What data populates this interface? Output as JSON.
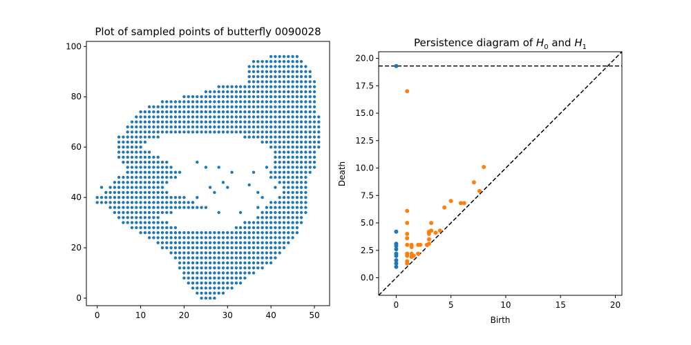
{
  "colors": {
    "h0": "#1f77b4",
    "h1": "#ff7f0e",
    "axis": "#000000",
    "background": "#ffffff"
  },
  "chart_data": [
    {
      "type": "scatter",
      "title": "Plot of sampled points of butterfly 0090028",
      "xlabel": "",
      "ylabel": "",
      "xlim": [
        -2.5,
        53.5
      ],
      "ylim": [
        -3,
        102
      ],
      "xticks": [
        "0",
        "10",
        "20",
        "30",
        "40",
        "50"
      ],
      "yticks": [
        "0",
        "20",
        "40",
        "60",
        "80",
        "100"
      ],
      "grid": false,
      "color": "#1f77b4",
      "rows": [
        {
          "y": 96,
          "x_ranges": [
            [
              40,
              46
            ]
          ]
        },
        {
          "y": 94,
          "x_ranges": [
            [
              36,
              47
            ]
          ]
        },
        {
          "y": 92,
          "x_ranges": [
            [
              35,
              48
            ]
          ]
        },
        {
          "y": 90,
          "x_ranges": [
            [
              35,
              49
            ]
          ]
        },
        {
          "y": 88,
          "x_ranges": [
            [
              35,
              49
            ]
          ]
        },
        {
          "y": 86,
          "x_ranges": [
            [
              35,
              50
            ]
          ]
        },
        {
          "y": 84,
          "x_ranges": [
            [
              28,
              50
            ]
          ]
        },
        {
          "y": 82,
          "x_ranges": [
            [
              25,
              50
            ]
          ]
        },
        {
          "y": 80,
          "x_ranges": [
            [
              20,
              50
            ]
          ]
        },
        {
          "y": 78,
          "x_ranges": [
            [
              15,
              50
            ]
          ]
        },
        {
          "y": 76,
          "x_ranges": [
            [
              12,
              50
            ]
          ]
        },
        {
          "y": 74,
          "x_ranges": [
            [
              10,
              50
            ]
          ]
        },
        {
          "y": 72,
          "x_ranges": [
            [
              9,
              51
            ]
          ]
        },
        {
          "y": 70,
          "x_ranges": [
            [
              8,
              51
            ]
          ]
        },
        {
          "y": 68,
          "x_ranges": [
            [
              7,
              51
            ]
          ]
        },
        {
          "y": 66,
          "x_ranges": [
            [
              7,
              51
            ]
          ]
        },
        {
          "y": 64,
          "x_ranges": [
            [
              5,
              14
            ],
            [
              34,
              51
            ]
          ]
        },
        {
          "y": 62,
          "x_ranges": [
            [
              5,
              11
            ],
            [
              38,
              51
            ]
          ]
        },
        {
          "y": 60,
          "x_ranges": [
            [
              5,
              10
            ],
            [
              40,
              51
            ]
          ]
        },
        {
          "y": 58,
          "x_ranges": [
            [
              5,
              12
            ],
            [
              41,
              50
            ]
          ]
        },
        {
          "y": 56,
          "x_ranges": [
            [
              5,
              14
            ],
            [
              41,
              50
            ]
          ]
        },
        {
          "y": 54,
          "x_ranges": [
            [
              6,
              16
            ],
            [
              41,
              50
            ]
          ]
        },
        {
          "y": 52,
          "x_ranges": [
            [
              7,
              17
            ],
            [
              41,
              50
            ]
          ]
        },
        {
          "y": 50,
          "x_ranges": [
            [
              7,
              19
            ],
            [
              40,
              49
            ]
          ]
        },
        {
          "y": 48,
          "x_ranges": [
            [
              5,
              18
            ],
            [
              40,
              48
            ]
          ]
        },
        {
          "y": 46,
          "x_ranges": [
            [
              4,
              16
            ],
            [
              42,
              48
            ]
          ]
        },
        {
          "y": 44,
          "x_ranges": [
            [
              3,
              15
            ],
            [
              43,
              48
            ]
          ]
        },
        {
          "y": 42,
          "x_ranges": [
            [
              2,
              16
            ],
            [
              43,
              48
            ]
          ]
        },
        {
          "y": 40,
          "x_ranges": [
            [
              1,
              20
            ],
            [
              42,
              48
            ]
          ]
        },
        {
          "y": 38,
          "x_ranges": [
            [
              1,
              22
            ],
            [
              40,
              48
            ]
          ]
        },
        {
          "y": 36,
          "x_ranges": [
            [
              3,
              24
            ],
            [
              39,
              48
            ]
          ]
        },
        {
          "y": 34,
          "x_ranges": [
            [
              4,
              17
            ],
            [
              38,
              48
            ]
          ]
        },
        {
          "y": 32,
          "x_ranges": [
            [
              5,
              14
            ],
            [
              37,
              47
            ]
          ]
        },
        {
          "y": 30,
          "x_ranges": [
            [
              6,
              16
            ],
            [
              34,
              47
            ]
          ]
        },
        {
          "y": 28,
          "x_ranges": [
            [
              8,
              18
            ],
            [
              32,
              46
            ]
          ]
        },
        {
          "y": 26,
          "x_ranges": [
            [
              10,
              46
            ]
          ]
        },
        {
          "y": 24,
          "x_ranges": [
            [
              12,
              45
            ]
          ]
        },
        {
          "y": 22,
          "x_ranges": [
            [
              14,
              44
            ]
          ]
        },
        {
          "y": 20,
          "x_ranges": [
            [
              15,
              43
            ]
          ]
        },
        {
          "y": 18,
          "x_ranges": [
            [
              17,
              42
            ]
          ]
        },
        {
          "y": 16,
          "x_ranges": [
            [
              18,
              41
            ]
          ]
        },
        {
          "y": 14,
          "x_ranges": [
            [
              19,
              40
            ]
          ]
        },
        {
          "y": 12,
          "x_ranges": [
            [
              19,
              38
            ]
          ]
        },
        {
          "y": 10,
          "x_ranges": [
            [
              20,
              36
            ]
          ]
        },
        {
          "y": 8,
          "x_ranges": [
            [
              20,
              34
            ]
          ]
        },
        {
          "y": 6,
          "x_ranges": [
            [
              21,
              33
            ]
          ]
        },
        {
          "y": 4,
          "x_ranges": [
            [
              22,
              31
            ]
          ]
        },
        {
          "y": 2,
          "x_ranges": [
            [
              23,
              29
            ]
          ]
        },
        {
          "y": 0,
          "x_ranges": [
            [
              24,
              27
            ]
          ]
        }
      ],
      "extra_points": [
        [
          0,
          40
        ],
        [
          0,
          38
        ],
        [
          1,
          44
        ],
        [
          23,
          54
        ],
        [
          25,
          52
        ],
        [
          28,
          52
        ],
        [
          31,
          50
        ],
        [
          29,
          46
        ],
        [
          30,
          44
        ],
        [
          27,
          42
        ],
        [
          26,
          44
        ],
        [
          23,
          40
        ],
        [
          22,
          38
        ],
        [
          25,
          36
        ],
        [
          28,
          34
        ],
        [
          33,
          34
        ],
        [
          37,
          42
        ],
        [
          38,
          40
        ],
        [
          36,
          50
        ],
        [
          39,
          52
        ],
        [
          37,
          36
        ],
        [
          35,
          45
        ],
        [
          41,
          44
        ]
      ]
    },
    {
      "type": "scatter",
      "title": "Persistence diagram of H_0 and H_1",
      "title_parts": {
        "prefix": "Persistence diagram of ",
        "a": "H",
        "a_sub": "0",
        "middle": " and ",
        "b": "H",
        "b_sub": "1"
      },
      "xlabel": "Birth",
      "ylabel": "Death",
      "xlim": [
        -1.6,
        20.6
      ],
      "ylim": [
        -1.6,
        20.6
      ],
      "xticks": [
        "0",
        "5",
        "10",
        "15",
        "20"
      ],
      "yticks": [
        "0.0",
        "2.5",
        "5.0",
        "7.5",
        "10.0",
        "12.5",
        "15.0",
        "17.5",
        "20.0"
      ],
      "grid": false,
      "infinity_line": 19.3,
      "diagonal": true,
      "series": [
        {
          "name": "H_0",
          "color": "#1f77b4",
          "points": [
            [
              0,
              19.3
            ],
            [
              0,
              4.2
            ],
            [
              0,
              3.1
            ],
            [
              0,
              2.9
            ],
            [
              0,
              2.6
            ],
            [
              0,
              2.2
            ],
            [
              0,
              2.0
            ],
            [
              0,
              1.6
            ],
            [
              0,
              1.3
            ],
            [
              0,
              1.0
            ]
          ]
        },
        {
          "name": "H_1",
          "color": "#ff7f0e",
          "points": [
            [
              1.0,
              17.0
            ],
            [
              1.0,
              6.1
            ],
            [
              1.0,
              5.0
            ],
            [
              1.0,
              4.0
            ],
            [
              1.0,
              3.6
            ],
            [
              1.0,
              3.0
            ],
            [
              1.0,
              2.2
            ],
            [
              1.0,
              2.0
            ],
            [
              1.0,
              1.5
            ],
            [
              1.0,
              1.3
            ],
            [
              1.4,
              3.0
            ],
            [
              1.4,
              2.8
            ],
            [
              1.4,
              2.2
            ],
            [
              1.4,
              1.9
            ],
            [
              1.6,
              2.0
            ],
            [
              2.0,
              3.0
            ],
            [
              2.0,
              2.2
            ],
            [
              2.2,
              3.0
            ],
            [
              2.8,
              3.0
            ],
            [
              3.0,
              4.2
            ],
            [
              3.0,
              3.5
            ],
            [
              3.0,
              3.1
            ],
            [
              3.0,
              4.0
            ],
            [
              3.2,
              5.0
            ],
            [
              3.2,
              4.3
            ],
            [
              3.6,
              4.1
            ],
            [
              4.0,
              4.3
            ],
            [
              4.4,
              6.4
            ],
            [
              5.0,
              7.0
            ],
            [
              5.9,
              6.8
            ],
            [
              6.2,
              6.8
            ],
            [
              7.1,
              8.7
            ],
            [
              7.6,
              7.9
            ],
            [
              8.0,
              10.1
            ]
          ]
        }
      ]
    }
  ]
}
